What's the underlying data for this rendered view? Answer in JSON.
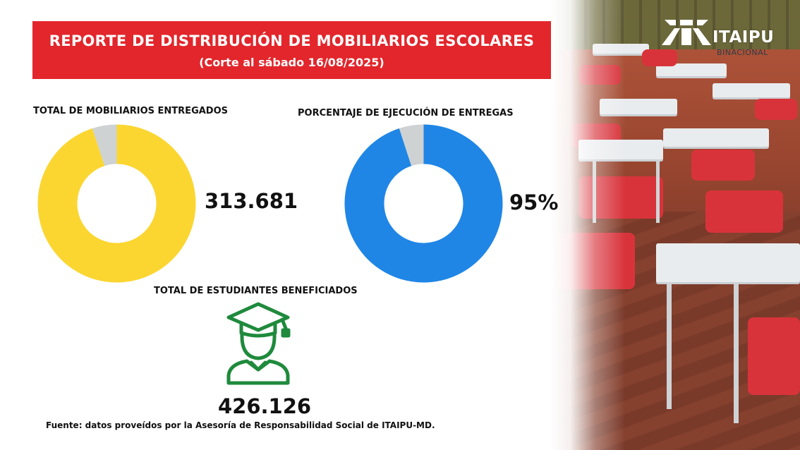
{
  "header": {
    "title": "REPORTE DE DISTRIBUCIÓN DE MOBILIARIOS ESCOLARES",
    "subtitle": "(Corte al sábado 16/08/2025)",
    "banner_color": "#e2262b"
  },
  "logo": {
    "name": "ITAIPU",
    "sub": "BINACIONAL",
    "icon": "itaipu-logo-icon"
  },
  "chart_data": [
    {
      "type": "pie",
      "title": "TOTAL DE MOBILIARIOS ENTREGADOS",
      "value_label": "313.681",
      "slices": [
        {
          "value": 95,
          "color": "#fbd631"
        },
        {
          "value": 5,
          "color": "#cfd2d2"
        }
      ]
    },
    {
      "type": "pie",
      "title": "PORCENTAJE DE EJECUCIÓN DE ENTREGAS",
      "value_label": "95%",
      "slices": [
        {
          "value": 95,
          "color": "#1f86e6"
        },
        {
          "value": 5,
          "color": "#cfd2d2"
        }
      ]
    }
  ],
  "students": {
    "title": "TOTAL DE ESTUDIANTES BENEFICIADOS",
    "value": "426.126",
    "icon": "graduate-icon",
    "icon_color": "#1f8a3c"
  },
  "source": "Fuente: datos proveídos por la Asesoría de Responsabilidad Social de ITAIPU-MD."
}
